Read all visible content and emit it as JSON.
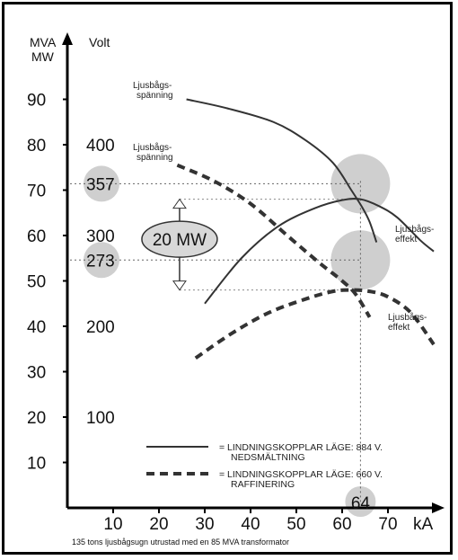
{
  "chart_data": {
    "type": "line",
    "caption": "135 tons ljusbågsugn utrustad med en 85 MVA transformator",
    "xlabel": "kA",
    "ylabel_left": "MVA\nMW",
    "ylabel_volt": "Volt",
    "xlim": [
      0,
      80
    ],
    "ylim": [
      0,
      100
    ],
    "x_ticks": [
      "10",
      "20",
      "30",
      "40",
      "50",
      "60",
      "70"
    ],
    "y_ticks": [
      "10",
      "20",
      "30",
      "40",
      "50",
      "60",
      "70",
      "80",
      "90"
    ],
    "volt_ticks": [
      {
        "label": "100",
        "y": 20
      },
      {
        "label": "200",
        "y": 40
      },
      {
        "label": "300",
        "y": 60
      },
      {
        "label": "400",
        "y": 80
      }
    ],
    "highlight_volts": [
      {
        "label": "357",
        "y": 71.4
      },
      {
        "label": "273",
        "y": 54.6
      }
    ],
    "highlight_current": {
      "label": "64",
      "x": 64
    },
    "power_difference": {
      "label": "20 MW",
      "from": 68,
      "to": 48
    },
    "series": [
      {
        "label": "Ljusbågs-\nspänning",
        "style": "solid",
        "points": [
          [
            26,
            90
          ],
          [
            35,
            88
          ],
          [
            45,
            85
          ],
          [
            52,
            81
          ],
          [
            58,
            76
          ],
          [
            62,
            70
          ],
          [
            64.5,
            66
          ],
          [
            66,
            63
          ],
          [
            67.5,
            58.5
          ]
        ]
      },
      {
        "label": "Ljusbågs-\nspänning",
        "style": "dashed",
        "points": [
          [
            24,
            75.5
          ],
          [
            32,
            72
          ],
          [
            40,
            67
          ],
          [
            48,
            60
          ],
          [
            55,
            54
          ],
          [
            60,
            50
          ],
          [
            63,
            47
          ],
          [
            66,
            42
          ]
        ]
      },
      {
        "label": "Ljusbågs-\neffekt",
        "style": "solid",
        "points": [
          [
            30,
            45
          ],
          [
            38,
            55
          ],
          [
            46,
            62
          ],
          [
            54,
            66
          ],
          [
            60,
            67.8
          ],
          [
            64,
            68
          ],
          [
            68,
            66.5
          ],
          [
            72,
            64
          ],
          [
            77,
            59
          ],
          [
            80,
            56.5
          ]
        ]
      },
      {
        "label": "Ljusbågs-\neffekt",
        "style": "dashed",
        "points": [
          [
            28,
            33
          ],
          [
            36,
            38.5
          ],
          [
            44,
            43
          ],
          [
            52,
            46
          ],
          [
            58,
            47.7
          ],
          [
            62,
            48
          ],
          [
            66,
            47.7
          ],
          [
            70,
            46.5
          ],
          [
            75,
            43
          ],
          [
            80,
            36
          ]
        ]
      }
    ],
    "legend": [
      {
        "style": "solid",
        "text_1": "= LINDNINGSKOPPLAR LÄGE: 884 V.",
        "text_2": "NEDSMÄLTNING"
      },
      {
        "style": "dashed",
        "text_1": "= LINDNINGSKOPPLAR LÄGE: 660 V.",
        "text_2": "RAFFINERING"
      }
    ],
    "grid": "dotted reference lines at 357 V, 273 V and 64 kA",
    "colors": {
      "highlight_fill": "#cfcfcf",
      "line": "#333333",
      "mw_fill": "#d8d8d8"
    }
  }
}
